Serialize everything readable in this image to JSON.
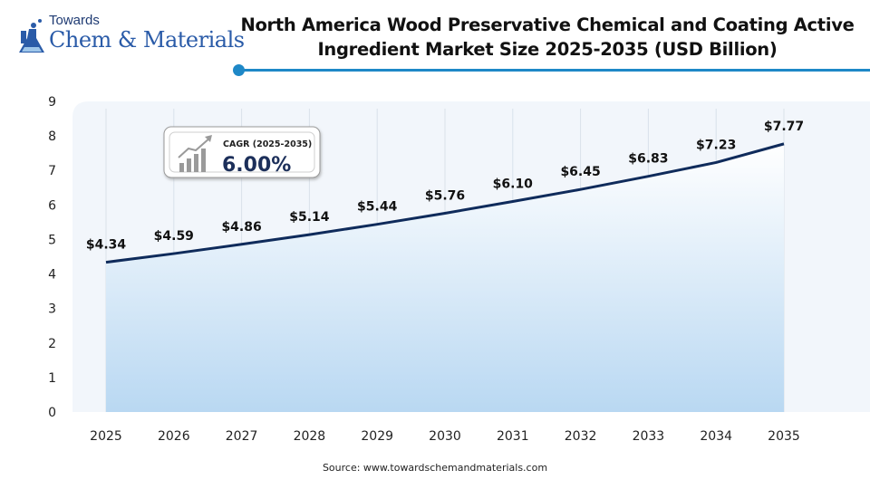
{
  "logo": {
    "top_text": "Towards",
    "main_text": "Chem & Materials"
  },
  "title": "North America Wood Preservative Chemical and Coating Active Ingredient Market Size 2025-2035 (USD Billion)",
  "cagr": {
    "label": "CAGR (2025-2035)",
    "value": "6.00%"
  },
  "source": "Source: www.towardschemandmaterials.com",
  "colors": {
    "line": "#0f2b5b",
    "area_top": "#ffffff",
    "area_bottom": "#b9d8f2",
    "rule": "#1e88c7",
    "brand": "#2a5ba8"
  },
  "chart_data": {
    "type": "area",
    "title": "North America Wood Preservative Chemical and Coating Active Ingredient Market Size 2025-2035 (USD Billion)",
    "xlabel": "",
    "ylabel": "",
    "categories": [
      "2025",
      "2026",
      "2027",
      "2028",
      "2029",
      "2030",
      "2031",
      "2032",
      "2033",
      "2034",
      "2035"
    ],
    "values": [
      4.34,
      4.59,
      4.86,
      5.14,
      5.44,
      5.76,
      6.1,
      6.45,
      6.83,
      7.23,
      7.77
    ],
    "data_labels": [
      "$4.34",
      "$4.59",
      "$4.86",
      "$5.14",
      "$5.44",
      "$5.76",
      "$6.10",
      "$6.45",
      "$6.83",
      "$7.23",
      "$7.77"
    ],
    "ylim": [
      0,
      9
    ],
    "yticks": [
      "0",
      "1",
      "2",
      "3",
      "4",
      "5",
      "6",
      "7",
      "8",
      "9"
    ],
    "grid": "vertical",
    "legend": "none"
  }
}
